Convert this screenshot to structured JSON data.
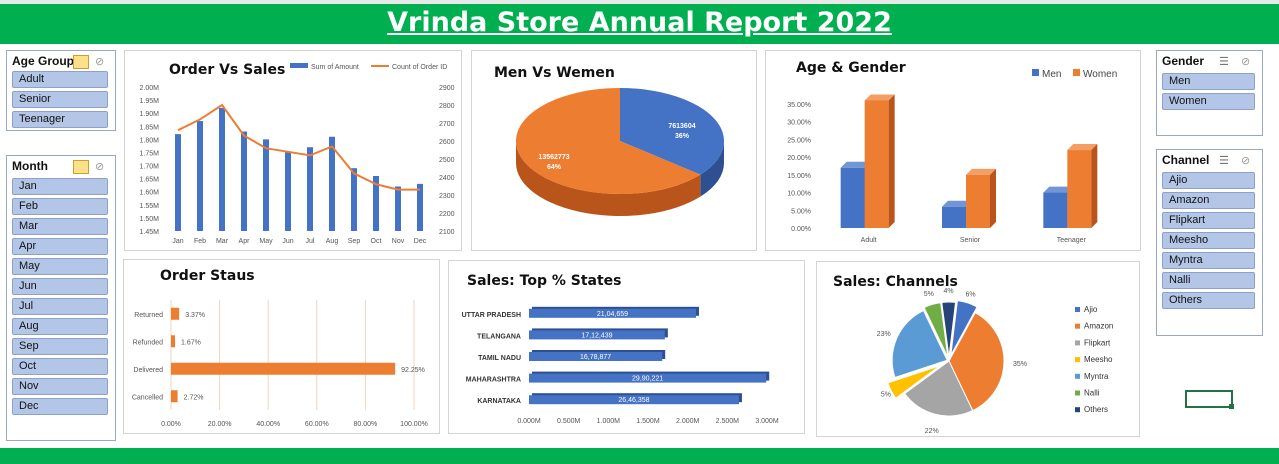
{
  "title": "Vrinda Store Annual Report 2022",
  "colors": {
    "green": "#00b050",
    "blue": "#4472c4",
    "orange": "#ed7d31",
    "gray": "#a5a5a5",
    "yellow": "#ffc000",
    "lightblue": "#5b9bd5",
    "darkgreen": "#70ad47",
    "navy": "#264478"
  },
  "slicers": {
    "age_group": {
      "title": "Age Group",
      "items": [
        "Adult",
        "Senior",
        "Teenager"
      ]
    },
    "month": {
      "title": "Month",
      "items": [
        "Jan",
        "Feb",
        "Mar",
        "Apr",
        "May",
        "Jun",
        "Jul",
        "Aug",
        "Sep",
        "Oct",
        "Nov",
        "Dec"
      ]
    },
    "gender": {
      "title": "Gender",
      "items": [
        "Men",
        "Women"
      ]
    },
    "channel": {
      "title": "Channel",
      "items": [
        "Ajio",
        "Amazon",
        "Flipkart",
        "Meesho",
        "Myntra",
        "Nalli",
        "Others"
      ]
    }
  },
  "chart_data": [
    {
      "id": "order_vs_sales",
      "type": "bar",
      "title": "Order Vs Sales",
      "categories": [
        "Jan",
        "Feb",
        "Mar",
        "Apr",
        "May",
        "Jun",
        "Jul",
        "Aug",
        "Sep",
        "Oct",
        "Nov",
        "Dec"
      ],
      "series": [
        {
          "name": "Sum of Amount",
          "type": "bar",
          "axis": "left",
          "values": [
            1.82,
            1.87,
            1.92,
            1.83,
            1.8,
            1.75,
            1.77,
            1.81,
            1.69,
            1.66,
            1.62,
            1.63
          ]
        },
        {
          "name": "Count of Order ID",
          "type": "line",
          "axis": "right",
          "values": [
            2660,
            2720,
            2800,
            2630,
            2560,
            2540,
            2520,
            2570,
            2420,
            2360,
            2330,
            2330
          ]
        }
      ],
      "y_left": {
        "ticks": [
          "1.45M",
          "1.50M",
          "1.55M",
          "1.60M",
          "1.65M",
          "1.70M",
          "1.75M",
          "1.80M",
          "1.85M",
          "1.90M",
          "1.95M",
          "2.00M"
        ],
        "range": [
          1.45,
          2.0
        ]
      },
      "y_right": {
        "ticks": [
          "2100",
          "2200",
          "2300",
          "2400",
          "2500",
          "2600",
          "2700",
          "2800",
          "2900"
        ],
        "range": [
          2100,
          2900
        ]
      },
      "legend": "top-right"
    },
    {
      "id": "men_vs_women",
      "type": "pie",
      "title": "Men Vs Wemen",
      "slices": [
        {
          "label": "7613604",
          "pct": "36%",
          "value": 7613604
        },
        {
          "label": "13562773",
          "pct": "64%",
          "value": 13562773
        }
      ]
    },
    {
      "id": "age_gender",
      "type": "bar",
      "title": "Age & Gender",
      "categories": [
        "Adult",
        "Senior",
        "Teenager"
      ],
      "series": [
        {
          "name": "Men",
          "values": [
            0.17,
            0.06,
            0.1
          ]
        },
        {
          "name": "Women",
          "values": [
            0.36,
            0.15,
            0.22
          ]
        }
      ],
      "y_ticks": [
        "0.00%",
        "5.00%",
        "10.00%",
        "15.00%",
        "20.00%",
        "25.00%",
        "30.00%",
        "35.00%"
      ],
      "ylim": [
        0,
        0.35
      ],
      "legend": "top-right"
    },
    {
      "id": "order_status",
      "type": "bar",
      "orientation": "horizontal",
      "title": "Order Staus",
      "categories": [
        "Returned",
        "Refunded",
        "Delivered",
        "Cancelled"
      ],
      "values": [
        3.37,
        1.67,
        92.25,
        2.72
      ],
      "data_labels": [
        "3.37%",
        "1.67%",
        "92.25%",
        "2.72%"
      ],
      "x_ticks": [
        "0.00%",
        "20.00%",
        "40.00%",
        "60.00%",
        "80.00%",
        "100.00%"
      ],
      "xlim": [
        0,
        100
      ]
    },
    {
      "id": "top_states",
      "type": "bar",
      "orientation": "horizontal",
      "title": "Sales: Top % States",
      "categories": [
        "UTTAR PRADESH",
        "TELANGANA",
        "TAMIL NADU",
        "MAHARASHTRA",
        "KARNATAKA"
      ],
      "values": [
        2104659,
        1712439,
        1678877,
        2990221,
        2646358
      ],
      "data_labels": [
        "21,04,659",
        "17,12,439",
        "16,78,877",
        "29,90,221",
        "26,46,358"
      ],
      "x_ticks": [
        "0.000M",
        "0.500M",
        "1.000M",
        "1.500M",
        "2.000M",
        "2.500M",
        "3.000M"
      ],
      "xlim": [
        0,
        3000000
      ]
    },
    {
      "id": "sales_channels",
      "type": "pie",
      "title": "Sales: Channels",
      "slices": [
        {
          "label": "Ajio",
          "pct": "6%",
          "value": 6
        },
        {
          "label": "Amazon",
          "pct": "35%",
          "value": 35
        },
        {
          "label": "Flipkart",
          "pct": "22%",
          "value": 22
        },
        {
          "label": "Meesho",
          "pct": "5%",
          "value": 5
        },
        {
          "label": "Myntra",
          "pct": "23%",
          "value": 23
        },
        {
          "label": "Nalli",
          "pct": "5%",
          "value": 5
        },
        {
          "label": "Others",
          "pct": "4%",
          "value": 4
        }
      ],
      "legend": "right"
    }
  ]
}
